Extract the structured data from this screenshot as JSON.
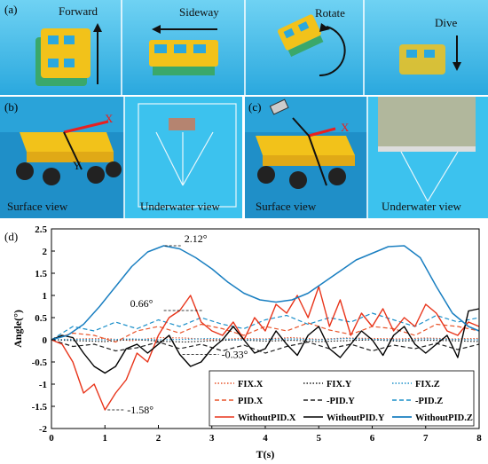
{
  "panel_a": {
    "tag": "(a)",
    "labels": [
      "Forward",
      "Sideway",
      "Rotate",
      "Dive"
    ]
  },
  "panel_b": {
    "tag": "(b)",
    "axis_x": "X",
    "axis_y": "Y",
    "surface": "Surface view",
    "underwater": "Underwater view"
  },
  "panel_c": {
    "tag": "(c)",
    "axis_x": "X",
    "surface": "Surface view",
    "underwater": "Underwater view"
  },
  "colors": {
    "water": "#35b8ea",
    "water_dark": "#1e8fc6",
    "robot_yellow": "#f2c21a",
    "robot_green": "#3aa86b"
  },
  "chart_data": {
    "panel_tag": "(d)",
    "type": "line",
    "xlabel": "T(s)",
    "ylabel": "Angle(°)",
    "xlim": [
      0,
      8
    ],
    "ylim": [
      -2,
      2.5
    ],
    "xticks": [
      "0",
      "1",
      "2",
      "3",
      "4",
      "5",
      "6",
      "7",
      "8"
    ],
    "yticks": [
      "-2",
      "-1.5",
      "-1",
      "-0.5",
      "0",
      "0.5",
      "1",
      "1.5",
      "2",
      "2.5"
    ],
    "annotations": [
      {
        "text": "2.12°",
        "x": 2.12,
        "y": 2.12
      },
      {
        "text": "0.66°",
        "x": 2.5,
        "y": 0.66
      },
      {
        "text": "-0.33°",
        "x": 2.45,
        "y": -0.33
      },
      {
        "text": "-1.58°",
        "x": 1.05,
        "y": -1.58
      }
    ],
    "legend_position": "bottom-right",
    "series": [
      {
        "name": "FIX.X",
        "color": "#e8542a",
        "dash": "1.5,2",
        "width": 1.2,
        "x": [
          0,
          0.5,
          1,
          1.5,
          2,
          2.5,
          3,
          3.5,
          4,
          4.5,
          5,
          5.5,
          6,
          6.5,
          7,
          7.5,
          8
        ],
        "y": [
          0,
          0.02,
          0.03,
          -0.02,
          0.05,
          0.04,
          0.0,
          0.03,
          0.02,
          0.05,
          0.01,
          0.04,
          0.03,
          0.02,
          0.04,
          0.02,
          0.03
        ]
      },
      {
        "name": "FIX.Y",
        "color": "#222222",
        "dash": "1.5,2",
        "width": 1.2,
        "x": [
          0,
          0.5,
          1,
          1.5,
          2,
          2.5,
          3,
          3.5,
          4,
          4.5,
          5,
          5.5,
          6,
          6.5,
          7,
          7.5,
          8
        ],
        "y": [
          0,
          -0.02,
          -0.04,
          0.01,
          -0.03,
          -0.05,
          -0.02,
          0.0,
          -0.03,
          -0.01,
          -0.04,
          -0.02,
          0.0,
          -0.03,
          -0.01,
          -0.02,
          -0.04
        ]
      },
      {
        "name": "FIX.Z",
        "color": "#1a8fc9",
        "dash": "1.5,2",
        "width": 1.2,
        "x": [
          0,
          0.5,
          1,
          1.5,
          2,
          2.5,
          3,
          3.5,
          4,
          4.5,
          5,
          5.5,
          6,
          6.5,
          7,
          7.5,
          8
        ],
        "y": [
          0,
          0.01,
          0.0,
          0.02,
          0.0,
          0.01,
          0.03,
          0.0,
          0.01,
          0.02,
          0.0,
          0.03,
          0.01,
          0.0,
          0.02,
          0.01,
          0.0
        ]
      },
      {
        "name": "PID.X",
        "color": "#e8542a",
        "dash": "5,3",
        "width": 1.2,
        "x": [
          0,
          0.4,
          0.8,
          1.2,
          1.6,
          2,
          2.4,
          2.8,
          3.2,
          3.6,
          4,
          4.4,
          4.8,
          5.2,
          5.6,
          6,
          6.4,
          6.8,
          7.2,
          7.6,
          8
        ],
        "y": [
          0,
          0.15,
          0.1,
          -0.05,
          0.2,
          0.3,
          0.15,
          0.35,
          0.25,
          0.1,
          0.3,
          0.2,
          0.38,
          0.22,
          0.12,
          0.3,
          0.25,
          0.1,
          0.35,
          0.3,
          0.2
        ]
      },
      {
        "name": "-PID.Y",
        "color": "#222222",
        "dash": "5,3",
        "width": 1.2,
        "x": [
          0,
          0.4,
          0.8,
          1.2,
          1.6,
          2,
          2.4,
          2.8,
          3.2,
          3.6,
          4,
          4.4,
          4.8,
          5.2,
          5.6,
          6,
          6.4,
          6.8,
          7.2,
          7.6,
          8
        ],
        "y": [
          0,
          -0.15,
          -0.1,
          -0.25,
          -0.18,
          -0.05,
          -0.2,
          -0.1,
          -0.25,
          -0.12,
          -0.3,
          -0.15,
          -0.05,
          -0.2,
          -0.1,
          -0.25,
          -0.12,
          -0.2,
          -0.08,
          -0.22,
          -0.1
        ]
      },
      {
        "name": "-PID.Z",
        "color": "#1a8fc9",
        "dash": "5,3",
        "width": 1.2,
        "x": [
          0,
          0.4,
          0.8,
          1.2,
          1.6,
          2,
          2.4,
          2.8,
          3.2,
          3.6,
          4,
          4.4,
          4.8,
          5.2,
          5.6,
          6,
          6.4,
          6.8,
          7.2,
          7.6,
          8
        ],
        "y": [
          0,
          0.3,
          0.2,
          0.4,
          0.25,
          0.45,
          0.3,
          0.5,
          0.35,
          0.25,
          0.45,
          0.55,
          0.35,
          0.5,
          0.4,
          0.6,
          0.45,
          0.3,
          0.55,
          0.4,
          0.5
        ]
      },
      {
        "name": "WithoutPID.X",
        "color": "#e8341a",
        "dash": "",
        "width": 1.4,
        "x": [
          0,
          0.2,
          0.4,
          0.6,
          0.8,
          1.0,
          1.2,
          1.4,
          1.6,
          1.8,
          2.0,
          2.2,
          2.4,
          2.6,
          2.8,
          3.0,
          3.2,
          3.4,
          3.6,
          3.8,
          4.0,
          4.2,
          4.4,
          4.6,
          4.8,
          5.0,
          5.2,
          5.4,
          5.6,
          5.8,
          6.0,
          6.2,
          6.4,
          6.6,
          6.8,
          7.0,
          7.2,
          7.4,
          7.6,
          7.8,
          8.0
        ],
        "y": [
          0,
          -0.1,
          -0.5,
          -1.2,
          -1.0,
          -1.58,
          -1.2,
          -0.9,
          -0.3,
          -0.5,
          0.1,
          0.5,
          0.66,
          1.0,
          0.4,
          0.2,
          0.1,
          0.4,
          0.0,
          0.5,
          0.2,
          0.8,
          0.6,
          1.0,
          0.5,
          1.2,
          0.3,
          0.9,
          0.1,
          0.6,
          0.3,
          0.7,
          0.2,
          0.5,
          0.3,
          0.8,
          0.6,
          0.2,
          0.1,
          0.4,
          0.3
        ]
      },
      {
        "name": "WithoutPID.Y",
        "color": "#000000",
        "dash": "",
        "width": 1.4,
        "x": [
          0,
          0.2,
          0.4,
          0.6,
          0.8,
          1.0,
          1.2,
          1.4,
          1.6,
          1.8,
          2.0,
          2.2,
          2.4,
          2.6,
          2.8,
          3.0,
          3.2,
          3.4,
          3.6,
          3.8,
          4.0,
          4.2,
          4.4,
          4.6,
          4.8,
          5.0,
          5.2,
          5.4,
          5.6,
          5.8,
          6.0,
          6.2,
          6.4,
          6.6,
          6.8,
          7.0,
          7.2,
          7.4,
          7.6,
          7.8,
          8.0
        ],
        "y": [
          0,
          0.1,
          0.05,
          -0.3,
          -0.6,
          -0.75,
          -0.6,
          -0.2,
          -0.1,
          -0.3,
          -0.1,
          0.1,
          -0.33,
          -0.6,
          -0.5,
          -0.2,
          0.0,
          0.3,
          0.0,
          -0.3,
          -0.2,
          0.2,
          -0.1,
          -0.35,
          0.1,
          0.3,
          -0.2,
          -0.4,
          -0.1,
          0.2,
          0.0,
          -0.35,
          0.1,
          0.3,
          -0.1,
          -0.3,
          -0.1,
          0.1,
          -0.4,
          0.65,
          0.7
        ]
      },
      {
        "name": "WithoutPID.Z",
        "color": "#1a7fc1",
        "dash": "",
        "width": 1.5,
        "x": [
          0,
          0.3,
          0.6,
          0.9,
          1.2,
          1.5,
          1.8,
          2.1,
          2.4,
          2.7,
          3.0,
          3.3,
          3.6,
          3.9,
          4.2,
          4.5,
          4.8,
          5.1,
          5.4,
          5.7,
          6.0,
          6.3,
          6.6,
          6.9,
          7.2,
          7.5,
          7.8,
          8.0
        ],
        "y": [
          0,
          0.1,
          0.35,
          0.75,
          1.2,
          1.65,
          1.98,
          2.12,
          2.05,
          1.85,
          1.6,
          1.3,
          1.05,
          0.9,
          0.85,
          0.9,
          1.05,
          1.3,
          1.55,
          1.8,
          1.95,
          2.1,
          2.12,
          1.85,
          1.2,
          0.6,
          0.3,
          0.2
        ]
      }
    ]
  }
}
